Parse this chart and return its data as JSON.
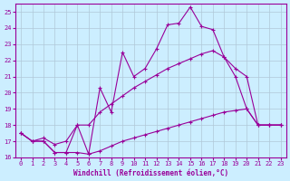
{
  "xlabel": "Windchill (Refroidissement éolien,°C)",
  "background_color": "#cceeff",
  "line_color": "#990099",
  "grid_color": "#b0c8d8",
  "xlim": [
    -0.5,
    23.5
  ],
  "ylim": [
    16,
    25.5
  ],
  "yticks": [
    16,
    17,
    18,
    19,
    20,
    21,
    22,
    23,
    24,
    25
  ],
  "xticks": [
    0,
    1,
    2,
    3,
    4,
    5,
    6,
    7,
    8,
    9,
    10,
    11,
    12,
    13,
    14,
    15,
    16,
    17,
    18,
    19,
    20,
    21,
    22,
    23
  ],
  "line1_x": [
    0,
    1,
    2,
    3,
    4,
    5,
    6,
    7,
    8,
    9,
    10,
    11,
    12,
    13,
    14,
    15,
    16,
    17,
    18,
    19,
    20,
    21,
    22,
    23
  ],
  "line1_y": [
    17.5,
    17.0,
    17.0,
    16.3,
    16.3,
    16.3,
    16.2,
    16.4,
    16.7,
    17.0,
    17.2,
    17.4,
    17.6,
    17.8,
    18.0,
    18.2,
    18.4,
    18.6,
    18.8,
    18.9,
    19.0,
    18.0,
    18.0,
    18.0
  ],
  "line2_x": [
    0,
    1,
    2,
    3,
    4,
    5,
    6,
    7,
    8,
    9,
    10,
    11,
    12,
    13,
    14,
    15,
    16,
    17,
    18,
    19,
    20,
    21,
    22,
    23
  ],
  "line2_y": [
    17.5,
    17.0,
    17.2,
    16.8,
    17.0,
    18.0,
    18.0,
    18.8,
    19.3,
    19.8,
    20.3,
    20.7,
    21.1,
    21.5,
    21.8,
    22.1,
    22.4,
    22.6,
    22.2,
    21.5,
    21.0,
    18.0,
    18.0,
    18.0
  ],
  "line3_x": [
    0,
    1,
    2,
    3,
    4,
    5,
    6,
    7,
    8,
    9,
    10,
    11,
    12,
    13,
    14,
    15,
    16,
    17,
    18,
    19,
    20,
    21,
    22,
    23
  ],
  "line3_y": [
    17.5,
    17.0,
    17.0,
    16.3,
    16.3,
    18.0,
    16.2,
    20.3,
    18.8,
    22.5,
    21.0,
    21.5,
    22.7,
    24.2,
    24.3,
    25.3,
    24.1,
    23.9,
    22.2,
    21.0,
    19.0,
    18.0,
    18.0,
    18.0
  ]
}
